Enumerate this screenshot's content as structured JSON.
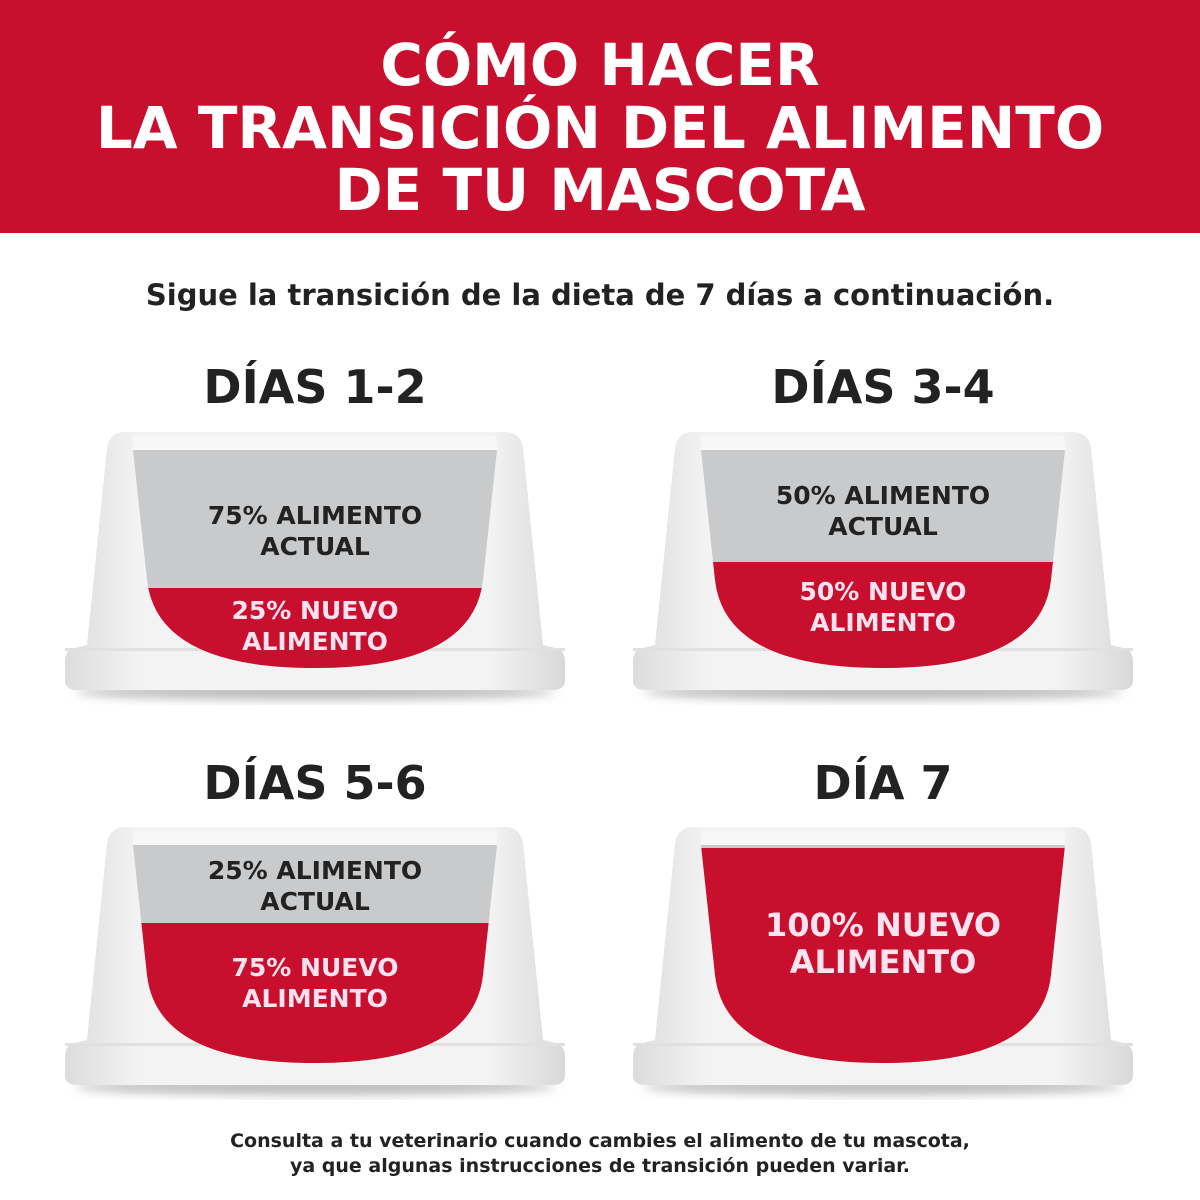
{
  "title": {
    "lines": [
      "CÓMO HACER",
      "LA TRANSICIÓN DEL ALIMENTO",
      "DE TU MASCOTA"
    ]
  },
  "subtitle": "Sigue la transición de la dieta de 7 días a continuación.",
  "colors": {
    "brand_red": "#c8102e",
    "current_food_gray": "#c9cacc",
    "bowl_white": "#ececed"
  },
  "stages": [
    {
      "heading": "DÍAS 1-2",
      "current": {
        "line1": "75% ALIMENTO",
        "line2": "ACTUAL"
      },
      "new": {
        "line1": "25% NUEVO",
        "line2": "ALIMENTO"
      },
      "new_fraction": 0.25
    },
    {
      "heading": "DÍAS 3-4",
      "current": {
        "line1": "50% ALIMENTO",
        "line2": "ACTUAL"
      },
      "new": {
        "line1": "50% NUEVO",
        "line2": "ALIMENTO"
      },
      "new_fraction": 0.5
    },
    {
      "heading": "DÍAS 5-6",
      "current": {
        "line1": "25% ALIMENTO",
        "line2": "ACTUAL"
      },
      "new": {
        "line1": "75% NUEVO",
        "line2": "ALIMENTO"
      },
      "new_fraction": 0.75
    },
    {
      "heading": "DÍA 7",
      "new": {
        "line1": "100% NUEVO",
        "line2": "ALIMENTO"
      },
      "new_fraction": 1.0
    }
  ],
  "footer": {
    "lines": [
      "Consulta a tu veterinario cuando cambies el alimento de tu mascota,",
      "ya que algunas instrucciones de transición pueden variar."
    ]
  }
}
